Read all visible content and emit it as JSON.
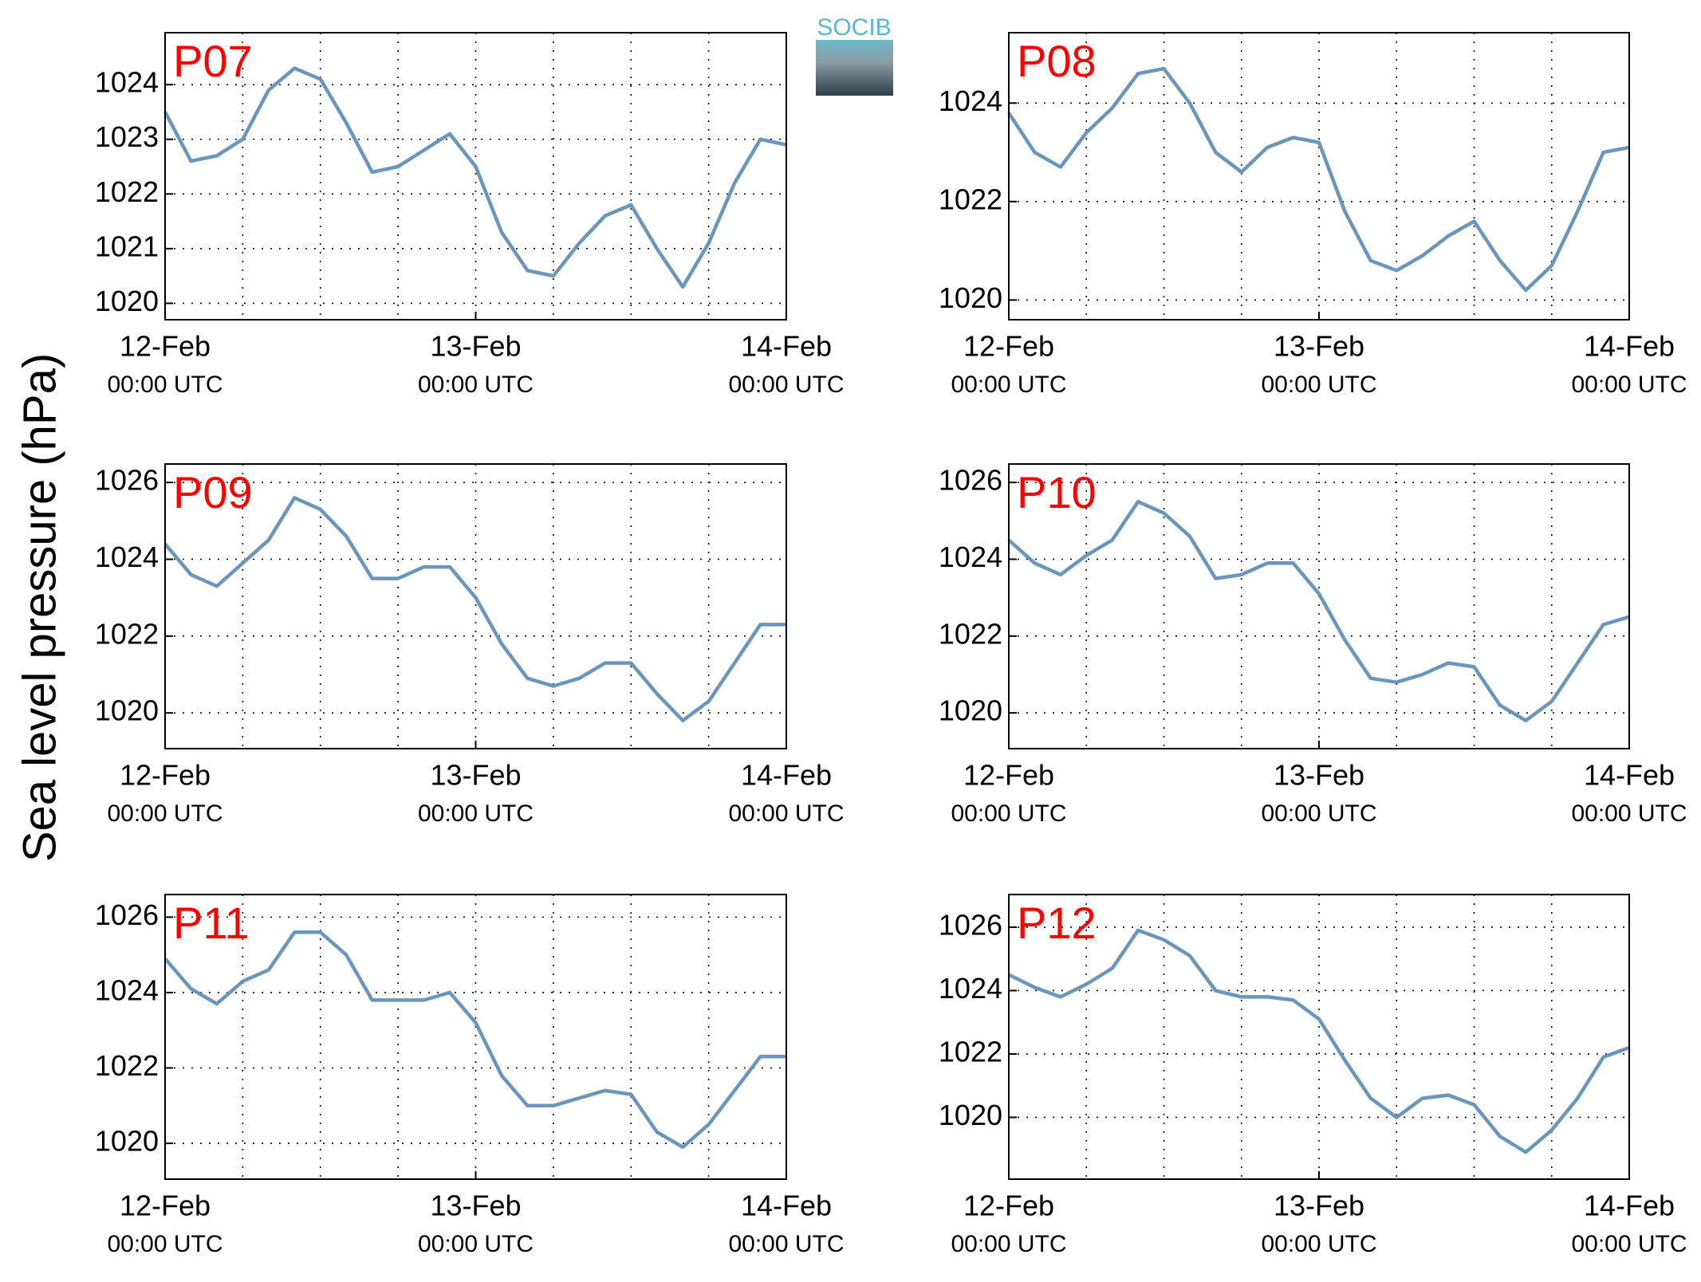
{
  "ylabel": "Sea level pressure (hPa)",
  "logo": "SOCIB",
  "chart_data": [
    {
      "type": "line",
      "title": "P07",
      "color": "#6a96bd",
      "grid": true,
      "x": [
        0,
        2,
        4,
        6,
        8,
        10,
        12,
        14,
        16,
        18,
        20,
        22,
        24,
        26,
        28,
        30,
        32,
        34,
        36,
        38,
        40,
        42,
        44,
        46,
        48
      ],
      "values": [
        1023.5,
        1022.6,
        1022.7,
        1023.0,
        1023.9,
        1024.3,
        1024.1,
        1023.3,
        1022.4,
        1022.5,
        1022.8,
        1023.1,
        1022.5,
        1021.3,
        1020.6,
        1020.5,
        1021.1,
        1021.6,
        1021.8,
        1021.0,
        1020.3,
        1021.1,
        1022.2,
        1023.0,
        1022.9
      ],
      "xlim": [
        0,
        48
      ],
      "ylim": [
        1019.7,
        1024.95
      ],
      "yticks": [
        1020,
        1021,
        1022,
        1023,
        1024
      ],
      "xticks": [
        {
          "value": 0,
          "label": "12-Feb",
          "sublabel": "00:00 UTC"
        },
        {
          "value": 24,
          "label": "13-Feb",
          "sublabel": "00:00 UTC"
        },
        {
          "value": 48,
          "label": "14-Feb",
          "sublabel": "00:00 UTC"
        }
      ],
      "xgrid": [
        6,
        12,
        18,
        24,
        30,
        36,
        42
      ]
    },
    {
      "type": "line",
      "title": "P08",
      "color": "#6a96bd",
      "grid": true,
      "x": [
        0,
        2,
        4,
        6,
        8,
        10,
        12,
        14,
        16,
        18,
        20,
        22,
        24,
        26,
        28,
        30,
        32,
        34,
        36,
        38,
        40,
        42,
        44,
        46,
        48
      ],
      "values": [
        1023.8,
        1023.0,
        1022.7,
        1023.4,
        1023.9,
        1024.6,
        1024.7,
        1024.0,
        1023.0,
        1022.6,
        1023.1,
        1023.3,
        1023.2,
        1021.8,
        1020.8,
        1020.6,
        1020.9,
        1021.3,
        1021.6,
        1020.8,
        1020.2,
        1020.7,
        1021.8,
        1023.0,
        1023.1
      ],
      "xlim": [
        0,
        48
      ],
      "ylim": [
        1019.6,
        1025.43
      ],
      "yticks": [
        1020,
        1022,
        1024
      ],
      "xticks": [
        {
          "value": 0,
          "label": "12-Feb",
          "sublabel": "00:00 UTC"
        },
        {
          "value": 24,
          "label": "13-Feb",
          "sublabel": "00:00 UTC"
        },
        {
          "value": 48,
          "label": "14-Feb",
          "sublabel": "00:00 UTC"
        }
      ],
      "xgrid": [
        6,
        12,
        18,
        24,
        30,
        36,
        42
      ]
    },
    {
      "type": "line",
      "title": "P09",
      "color": "#6a96bd",
      "grid": true,
      "x": [
        0,
        2,
        4,
        6,
        8,
        10,
        12,
        14,
        16,
        18,
        20,
        22,
        24,
        26,
        28,
        30,
        32,
        34,
        36,
        38,
        40,
        42,
        44,
        46,
        48
      ],
      "values": [
        1024.4,
        1023.6,
        1023.3,
        1023.9,
        1024.5,
        1025.6,
        1025.3,
        1024.6,
        1023.5,
        1023.5,
        1023.8,
        1023.8,
        1023.0,
        1021.8,
        1020.9,
        1020.7,
        1020.9,
        1021.3,
        1021.3,
        1020.5,
        1019.8,
        1020.3,
        1021.3,
        1022.3,
        1022.3
      ],
      "xlim": [
        0,
        48
      ],
      "ylim": [
        1019.07,
        1026.48
      ],
      "yticks": [
        1020,
        1022,
        1024,
        1026
      ],
      "xticks": [
        {
          "value": 0,
          "label": "12-Feb",
          "sublabel": "00:00 UTC"
        },
        {
          "value": 24,
          "label": "13-Feb",
          "sublabel": "00:00 UTC"
        },
        {
          "value": 48,
          "label": "14-Feb",
          "sublabel": "00:00 UTC"
        }
      ],
      "xgrid": [
        6,
        12,
        18,
        24,
        30,
        36,
        42
      ]
    },
    {
      "type": "line",
      "title": "P10",
      "color": "#6a96bd",
      "grid": true,
      "x": [
        0,
        2,
        4,
        6,
        8,
        10,
        12,
        14,
        16,
        18,
        20,
        22,
        24,
        26,
        28,
        30,
        32,
        34,
        36,
        38,
        40,
        42,
        44,
        46,
        48
      ],
      "values": [
        1024.5,
        1023.9,
        1023.6,
        1024.1,
        1024.5,
        1025.5,
        1025.2,
        1024.6,
        1023.5,
        1023.6,
        1023.9,
        1023.9,
        1023.1,
        1021.9,
        1020.9,
        1020.8,
        1021.0,
        1021.3,
        1021.2,
        1020.2,
        1019.8,
        1020.3,
        1021.3,
        1022.3,
        1022.5
      ],
      "xlim": [
        0,
        48
      ],
      "ylim": [
        1019.07,
        1026.48
      ],
      "yticks": [
        1020,
        1022,
        1024,
        1026
      ],
      "xticks": [
        {
          "value": 0,
          "label": "12-Feb",
          "sublabel": "00:00 UTC"
        },
        {
          "value": 24,
          "label": "13-Feb",
          "sublabel": "00:00 UTC"
        },
        {
          "value": 48,
          "label": "14-Feb",
          "sublabel": "00:00 UTC"
        }
      ],
      "xgrid": [
        6,
        12,
        18,
        24,
        30,
        36,
        42
      ]
    },
    {
      "type": "line",
      "title": "P11",
      "color": "#6a96bd",
      "grid": true,
      "x": [
        0,
        2,
        4,
        6,
        8,
        10,
        12,
        14,
        16,
        18,
        20,
        22,
        24,
        26,
        28,
        30,
        32,
        34,
        36,
        38,
        40,
        42,
        44,
        46,
        48
      ],
      "values": [
        1024.9,
        1024.1,
        1023.7,
        1024.3,
        1024.6,
        1025.6,
        1025.6,
        1025.0,
        1023.8,
        1023.8,
        1023.8,
        1024.0,
        1023.2,
        1021.8,
        1021.0,
        1021.0,
        1021.2,
        1021.4,
        1021.3,
        1020.3,
        1019.9,
        1020.5,
        1021.4,
        1022.3,
        1022.3
      ],
      "xlim": [
        0,
        48
      ],
      "ylim": [
        1019.05,
        1026.6
      ],
      "yticks": [
        1020,
        1022,
        1024,
        1026
      ],
      "xticks": [
        {
          "value": 0,
          "label": "12-Feb",
          "sublabel": "00:00 UTC"
        },
        {
          "value": 24,
          "label": "13-Feb",
          "sublabel": "00:00 UTC"
        },
        {
          "value": 48,
          "label": "14-Feb",
          "sublabel": "00:00 UTC"
        }
      ],
      "xgrid": [
        6,
        12,
        18,
        24,
        30,
        36,
        42
      ]
    },
    {
      "type": "line",
      "title": "P12",
      "color": "#6a96bd",
      "grid": true,
      "x": [
        0,
        2,
        4,
        6,
        8,
        10,
        12,
        14,
        16,
        18,
        20,
        22,
        24,
        26,
        28,
        30,
        32,
        34,
        36,
        38,
        40,
        42,
        44,
        46,
        48
      ],
      "values": [
        1024.5,
        1024.1,
        1023.8,
        1024.2,
        1024.7,
        1025.9,
        1025.6,
        1025.1,
        1024.0,
        1023.8,
        1023.8,
        1023.7,
        1023.1,
        1021.8,
        1020.6,
        1020.0,
        1020.6,
        1020.7,
        1020.4,
        1019.4,
        1018.9,
        1019.6,
        1020.6,
        1021.9,
        1022.2
      ],
      "xlim": [
        0,
        48
      ],
      "ylim": [
        1018.05,
        1027.03
      ],
      "yticks": [
        1020,
        1022,
        1024,
        1026
      ],
      "xticks": [
        {
          "value": 0,
          "label": "12-Feb",
          "sublabel": "00:00 UTC"
        },
        {
          "value": 24,
          "label": "13-Feb",
          "sublabel": "00:00 UTC"
        },
        {
          "value": 48,
          "label": "14-Feb",
          "sublabel": "00:00 UTC"
        }
      ],
      "xgrid": [
        6,
        12,
        18,
        24,
        30,
        36,
        42
      ]
    }
  ]
}
